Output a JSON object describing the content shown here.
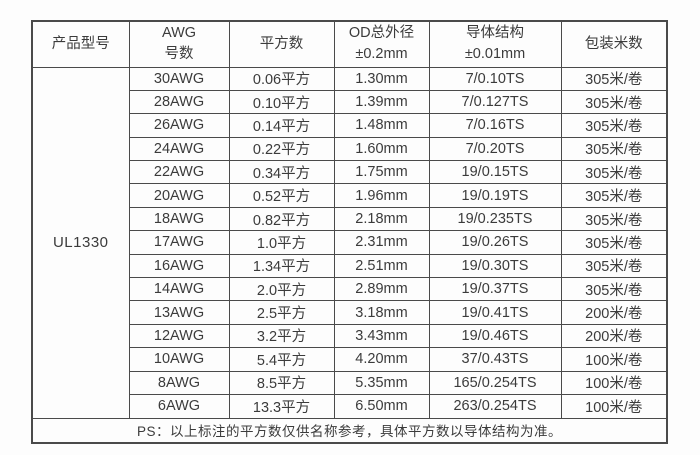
{
  "page": {
    "background": "#fdfdfd"
  },
  "table": {
    "border_color": "#4a4a4a",
    "text_color": "#3b3b3b",
    "header": [
      {
        "line1": "产品型号",
        "line2": ""
      },
      {
        "line1": "AWG",
        "line2": "号数"
      },
      {
        "line1": "平方数",
        "line2": ""
      },
      {
        "line1": "OD总外径",
        "line2": "±0.2mm"
      },
      {
        "line1": "导体结构",
        "line2": "±0.01mm"
      },
      {
        "line1": "包装米数",
        "line2": ""
      }
    ],
    "product_model": "UL1330",
    "rows": [
      [
        "30AWG",
        "0.06平方",
        "1.30mm",
        "7/0.10TS",
        "305米/卷"
      ],
      [
        "28AWG",
        "0.10平方",
        "1.39mm",
        "7/0.127TS",
        "305米/卷"
      ],
      [
        "26AWG",
        "0.14平方",
        "1.48mm",
        "7/0.16TS",
        "305米/卷"
      ],
      [
        "24AWG",
        "0.22平方",
        "1.60mm",
        "7/0.20TS",
        "305米/卷"
      ],
      [
        "22AWG",
        "0.34平方",
        "1.75mm",
        "19/0.15TS",
        "305米/卷"
      ],
      [
        "20AWG",
        "0.52平方",
        "1.96mm",
        "19/0.19TS",
        "305米/卷"
      ],
      [
        "18AWG",
        "0.82平方",
        "2.18mm",
        "19/0.235TS",
        "305米/卷"
      ],
      [
        "17AWG",
        "1.0平方",
        "2.31mm",
        "19/0.26TS",
        "305米/卷"
      ],
      [
        "16AWG",
        "1.34平方",
        "2.51mm",
        "19/0.30TS",
        "305米/卷"
      ],
      [
        "14AWG",
        "2.0平方",
        "2.89mm",
        "19/0.37TS",
        "305米/卷"
      ],
      [
        "13AWG",
        "2.5平方",
        "3.18mm",
        "19/0.41TS",
        "200米/卷"
      ],
      [
        "12AWG",
        "3.2平方",
        "3.43mm",
        "19/0.46TS",
        "200米/卷"
      ],
      [
        "10AWG",
        "5.4平方",
        "4.20mm",
        "37/0.43TS",
        "100米/卷"
      ],
      [
        "8AWG",
        "8.5平方",
        "5.35mm",
        "165/0.254TS",
        "100米/卷"
      ],
      [
        "6AWG",
        "13.3平方",
        "6.50mm",
        "263/0.254TS",
        "100米/卷"
      ]
    ],
    "footer_note": "PS：以上标注的平方数仅供名称参考，具体平方数以导体结构为准。"
  }
}
